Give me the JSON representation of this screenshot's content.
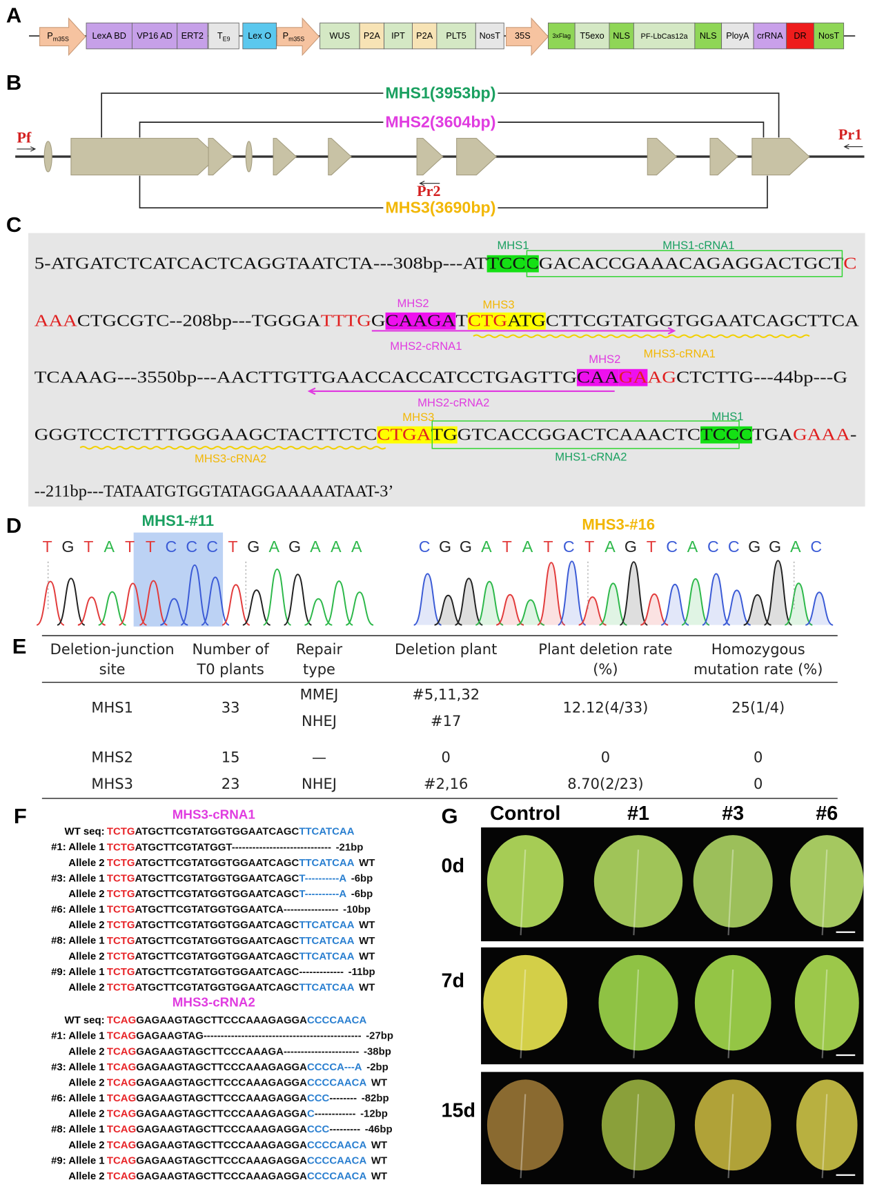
{
  "panel_labels": [
    "A",
    "B",
    "C",
    "D",
    "E",
    "F",
    "G"
  ],
  "construct": [
    {
      "label": "P",
      "sub": "m35S",
      "color": "#f6c3a0"
    },
    {
      "label": "LexA BD",
      "color": "#c6a0e8"
    },
    {
      "label": "VP16 AD",
      "color": "#c6a0e8"
    },
    {
      "label": "ERT2",
      "color": "#c6a0e8"
    },
    {
      "label": "T",
      "sub": "E9",
      "color": "#e6e6e6"
    },
    {
      "label": "Lex O",
      "color": "#5bc8ee"
    },
    {
      "label": "P",
      "sub": "m35S",
      "color": "#f6c3a0"
    },
    {
      "label": "WUS",
      "color": "#d4e8c4"
    },
    {
      "label": "P2A",
      "color": "#f7e3b5"
    },
    {
      "label": "IPT",
      "color": "#d4e8c4"
    },
    {
      "label": "P2A",
      "color": "#f7e3b5"
    },
    {
      "label": "PLT5",
      "color": "#d4e8c4"
    },
    {
      "label": "NosT",
      "color": "#e6e6e6"
    },
    {
      "label": "35S",
      "color": "#f6c3a0"
    },
    {
      "label": "3xFlag",
      "color": "#8fd656"
    },
    {
      "label": "T5exo",
      "color": "#d4e8c4"
    },
    {
      "label": "NLS",
      "color": "#8fd656"
    },
    {
      "label": "PF-LbCas12a",
      "color": "#d4e8c4"
    },
    {
      "label": "NLS",
      "color": "#8fd656"
    },
    {
      "label": "PloyA",
      "color": "#e6e6e6"
    },
    {
      "label": "crRNA",
      "color": "#c9a0ea"
    },
    {
      "label": "DR",
      "color": "#ee1c1c"
    },
    {
      "label": "NosT",
      "color": "#8fd656"
    }
  ],
  "gene": {
    "deletions": [
      {
        "label": "MHS1(3953bp)",
        "color": "#1aa060"
      },
      {
        "label": "MHS2(3604bp)",
        "color": "#e03ce0"
      },
      {
        "label": "MHS3(3690bp)",
        "color": "#f2b705"
      }
    ],
    "primers": [
      "Pf",
      "Pr1",
      "Pr2"
    ]
  },
  "sequence_lines": [
    [
      {
        "t": "5-ATGATCTCATCACTCAGGTAATCTA---308bp---AT",
        "c": "#111"
      },
      {
        "t": "TCCC",
        "c": "#111",
        "bg": "#14e014"
      },
      {
        "t": "GACACCGAAACAGAGGACTGCT",
        "c": "#111"
      },
      {
        "t": "C",
        "c": "#e02020"
      }
    ],
    [
      {
        "t": "AAA",
        "c": "#e02020"
      },
      {
        "t": "CTGCGTC--208bp---TGGGA",
        "c": "#111"
      },
      {
        "t": "TTTG",
        "c": "#e02020"
      },
      {
        "t": "G",
        "c": "#111"
      },
      {
        "t": "CAAGA",
        "c": "#111",
        "bg": "#ee10ee"
      },
      {
        "t": "T",
        "c": "#111"
      },
      {
        "t": "CTG",
        "c": "#e02020",
        "bg": "#ffff00"
      },
      {
        "t": "ATG",
        "c": "#111",
        "bg": "#ffff00"
      },
      {
        "t": "CTTCGTATGGTGGAATCAGCTTCA",
        "c": "#111"
      }
    ],
    [
      {
        "t": "TCAAAG---3550bp---AACTTGTTGAACCACCATCCTGAGTTG",
        "c": "#111"
      },
      {
        "t": "CAA",
        "c": "#111",
        "bg": "#ee10ee"
      },
      {
        "t": "GA",
        "c": "#e02020",
        "bg": "#ee10ee"
      },
      {
        "t": "AG",
        "c": "#e02020"
      },
      {
        "t": "CTCTTG---44bp---G",
        "c": "#111"
      }
    ],
    [
      {
        "t": "GGGTCCTCTTTGGGAAGCTACTTCTC",
        "c": "#111"
      },
      {
        "t": "CTGA",
        "c": "#e02020",
        "bg": "#ffff00"
      },
      {
        "t": "TG",
        "c": "#111",
        "bg": "#ffff00"
      },
      {
        "t": "GTCACCGGACTCAAACTC",
        "c": "#111"
      },
      {
        "t": "TCCC",
        "c": "#111",
        "bg": "#14e014"
      },
      {
        "t": "TGA",
        "c": "#111"
      },
      {
        "t": "GAAA",
        "c": "#e02020"
      },
      {
        "t": "-",
        "c": "#111"
      }
    ],
    [
      {
        "t": "--211bp---TATAATGTGGTATAGGAAAAATAAT-3’",
        "c": "#111"
      }
    ]
  ],
  "sequence_annotations": [
    {
      "text": "MHS1",
      "color": "#1aa060"
    },
    {
      "text": "MHS1-cRNA1",
      "color": "#1aa060"
    },
    {
      "text": "MHS2",
      "color": "#e03ce0"
    },
    {
      "text": "MHS3",
      "color": "#f2b705"
    },
    {
      "text": "MHS2-cRNA1",
      "color": "#e03ce0"
    },
    {
      "text": "MHS2",
      "color": "#e03ce0"
    },
    {
      "text": "MHS3-cRNA1",
      "color": "#f2b705"
    },
    {
      "text": "MHS2-cRNA2",
      "color": "#e03ce0"
    },
    {
      "text": "MHS3",
      "color": "#f2b705"
    },
    {
      "text": "MHS1",
      "color": "#1aa060"
    },
    {
      "text": "MHS3-cRNA2",
      "color": "#f2b705"
    },
    {
      "text": "MHS1-cRNA2",
      "color": "#1aa060"
    }
  ],
  "chromatograms": [
    {
      "title": "MHS1-#11",
      "color": "#1aa060",
      "bases": [
        "T",
        "G",
        "T",
        "A",
        "T",
        "T",
        "C",
        "C",
        "C",
        "T",
        "G",
        "A",
        "G",
        "A",
        "A",
        "A"
      ]
    },
    {
      "title": "MHS3-#16",
      "color": "#f2b705",
      "bases": [
        "C",
        "G",
        "G",
        "A",
        "T",
        "A",
        "T",
        "C",
        "T",
        "A",
        "G",
        "T",
        "C",
        "A",
        "C",
        "C",
        "G",
        "G",
        "A",
        "C"
      ]
    }
  ],
  "table": {
    "header": [
      [
        "Deletion-junction",
        "site"
      ],
      [
        "Number of",
        "T0 plants"
      ],
      [
        "Repair",
        "type"
      ],
      [
        "Deletion plant"
      ],
      [
        "Plant deletion rate",
        "(%)"
      ],
      [
        "Homozygous",
        "mutation rate  (%)"
      ]
    ],
    "rows": [
      [
        "MHS1",
        "33",
        [
          "MMEJ",
          "NHEJ"
        ],
        [
          "#5,11,32",
          "#17"
        ],
        "12.12(4/33)",
        "25(1/4)"
      ],
      [
        "MHS2",
        "15",
        "—",
        "0",
        "0",
        "0"
      ],
      [
        "MHS3",
        "23",
        "NHEJ",
        "#2,16",
        "8.70(2/23)",
        "0"
      ]
    ]
  },
  "alignments": [
    {
      "title": "MHS3-cRNA1",
      "lines": [
        {
          "label": "WT seq:",
          "seq": [
            {
              "t": "TCTG",
              "c": "#e8262a"
            },
            {
              "t": "ATGCTTCGTATGGTGGAATCAGC",
              "c": "#111"
            },
            {
              "t": "TTCATCAA",
              "c": "#2a7fd0"
            }
          ]
        },
        {
          "label": "#1: Allele 1",
          "seq": [
            {
              "t": "TCTG",
              "c": "#e8262a"
            },
            {
              "t": "ATGCTTCGTATGGT-----------------------------",
              "c": "#111"
            }
          ],
          "result": "-21bp"
        },
        {
          "label": "Allele 2",
          "seq": [
            {
              "t": "TCTG",
              "c": "#e8262a"
            },
            {
              "t": "ATGCTTCGTATGGTGGAATCAGC",
              "c": "#111"
            },
            {
              "t": "TTCATCAA",
              "c": "#2a7fd0"
            }
          ],
          "result": "WT"
        },
        {
          "label": "#3: Allele 1",
          "seq": [
            {
              "t": "TCTG",
              "c": "#e8262a"
            },
            {
              "t": "ATGCTTCGTATGGTGGAATCAGC",
              "c": "#111"
            },
            {
              "t": "T----------A",
              "c": "#2a7fd0"
            }
          ],
          "result": "-6bp"
        },
        {
          "label": "Allele 2",
          "seq": [
            {
              "t": "TCTG",
              "c": "#e8262a"
            },
            {
              "t": "ATGCTTCGTATGGTGGAATCAGC",
              "c": "#111"
            },
            {
              "t": "T----------A",
              "c": "#2a7fd0"
            }
          ],
          "result": "-6bp"
        },
        {
          "label": "#6: Allele 1",
          "seq": [
            {
              "t": "TCTG",
              "c": "#e8262a"
            },
            {
              "t": "ATGCTTCGTATGGTGGAATCA----------------",
              "c": "#111"
            }
          ],
          "result": "-10bp"
        },
        {
          "label": "Allele 2",
          "seq": [
            {
              "t": "TCTG",
              "c": "#e8262a"
            },
            {
              "t": "ATGCTTCGTATGGTGGAATCAGC",
              "c": "#111"
            },
            {
              "t": "TTCATCAA",
              "c": "#2a7fd0"
            }
          ],
          "result": "WT"
        },
        {
          "label": "#8: Allele 1",
          "seq": [
            {
              "t": "TCTG",
              "c": "#e8262a"
            },
            {
              "t": "ATGCTTCGTATGGTGGAATCAGC",
              "c": "#111"
            },
            {
              "t": "TTCATCAA",
              "c": "#2a7fd0"
            }
          ],
          "result": "WT"
        },
        {
          "label": "Allele 2",
          "seq": [
            {
              "t": "TCTG",
              "c": "#e8262a"
            },
            {
              "t": "ATGCTTCGTATGGTGGAATCAGC",
              "c": "#111"
            },
            {
              "t": "TTCATCAA",
              "c": "#2a7fd0"
            }
          ],
          "result": "WT"
        },
        {
          "label": "#9: Allele 1",
          "seq": [
            {
              "t": "TCTG",
              "c": "#e8262a"
            },
            {
              "t": "ATGCTTCGTATGGTGGAATCAGC-------------",
              "c": "#111"
            }
          ],
          "result": "-11bp"
        },
        {
          "label": "Allele 2",
          "seq": [
            {
              "t": "TCTG",
              "c": "#e8262a"
            },
            {
              "t": "ATGCTTCGTATGGTGGAATCAGC",
              "c": "#111"
            },
            {
              "t": "TTCATCAA",
              "c": "#2a7fd0"
            }
          ],
          "result": "WT"
        }
      ]
    },
    {
      "title": "MHS3-cRNA2",
      "lines": [
        {
          "label": "WT seq:",
          "seq": [
            {
              "t": "TCAG",
              "c": "#e8262a"
            },
            {
              "t": "GAGAAGTAGCTTCCCAAAGAGGA",
              "c": "#111"
            },
            {
              "t": "CCCCAACA",
              "c": "#2a7fd0"
            }
          ]
        },
        {
          "label": "#1: Allele 1",
          "seq": [
            {
              "t": "TCAG",
              "c": "#e8262a"
            },
            {
              "t": "GAGAAGTAG----------------------------------------------",
              "c": "#111"
            }
          ],
          "result": "-27bp"
        },
        {
          "label": "Allele 2",
          "seq": [
            {
              "t": "TCAG",
              "c": "#e8262a"
            },
            {
              "t": "GAGAAGTAGCTTCCCAAAGA----------------------",
              "c": "#111"
            }
          ],
          "result": "-38bp"
        },
        {
          "label": "#3: Allele 1",
          "seq": [
            {
              "t": "TCAG",
              "c": "#e8262a"
            },
            {
              "t": "GAGAAGTAGCTTCCCAAAGAGGA",
              "c": "#111"
            },
            {
              "t": "CCCCA---A",
              "c": "#2a7fd0"
            }
          ],
          "result": "-2bp"
        },
        {
          "label": "Allele 2",
          "seq": [
            {
              "t": "TCAG",
              "c": "#e8262a"
            },
            {
              "t": "GAGAAGTAGCTTCCCAAAGAGGA",
              "c": "#111"
            },
            {
              "t": "CCCCAACA",
              "c": "#2a7fd0"
            }
          ],
          "result": "WT"
        },
        {
          "label": "#6: Allele 1",
          "seq": [
            {
              "t": "TCAG",
              "c": "#e8262a"
            },
            {
              "t": "GAGAAGTAGCTTCCCAAAGAGGA",
              "c": "#111"
            },
            {
              "t": "CCC",
              "c": "#2a7fd0"
            },
            {
              "t": "--------",
              "c": "#111"
            }
          ],
          "result": "-82bp"
        },
        {
          "label": "Allele 2",
          "seq": [
            {
              "t": "TCAG",
              "c": "#e8262a"
            },
            {
              "t": "GAGAAGTAGCTTCCCAAAGAGGA",
              "c": "#111"
            },
            {
              "t": "C",
              "c": "#2a7fd0"
            },
            {
              "t": "------------",
              "c": "#111"
            }
          ],
          "result": "-12bp"
        },
        {
          "label": "#8: Allele 1",
          "seq": [
            {
              "t": "TCAG",
              "c": "#e8262a"
            },
            {
              "t": "GAGAAGTAGCTTCCCAAAGAGGA",
              "c": "#111"
            },
            {
              "t": "CCC",
              "c": "#2a7fd0"
            },
            {
              "t": "---------",
              "c": "#111"
            }
          ],
          "result": "-46bp"
        },
        {
          "label": "Allele 2",
          "seq": [
            {
              "t": "TCAG",
              "c": "#e8262a"
            },
            {
              "t": "GAGAAGTAGCTTCCCAAAGAGGA",
              "c": "#111"
            },
            {
              "t": "CCCCAACA",
              "c": "#2a7fd0"
            }
          ],
          "result": "WT"
        },
        {
          "label": "#9: Allele 1",
          "seq": [
            {
              "t": "TCAG",
              "c": "#e8262a"
            },
            {
              "t": "GAGAAGTAGCTTCCCAAAGAGGA",
              "c": "#111"
            },
            {
              "t": "CCCCAACA",
              "c": "#2a7fd0"
            }
          ],
          "result": "WT"
        },
        {
          "label": "Allele 2",
          "seq": [
            {
              "t": "TCAG",
              "c": "#e8262a"
            },
            {
              "t": "GAGAAGTAGCTTCCCAAAGAGGA",
              "c": "#111"
            },
            {
              "t": "CCCCAACA",
              "c": "#2a7fd0"
            }
          ],
          "result": "WT"
        }
      ]
    }
  ],
  "photos": {
    "columns": [
      "Control",
      "#1",
      "#3",
      "#6"
    ],
    "rows": [
      "0d",
      "7d",
      "15d"
    ]
  }
}
